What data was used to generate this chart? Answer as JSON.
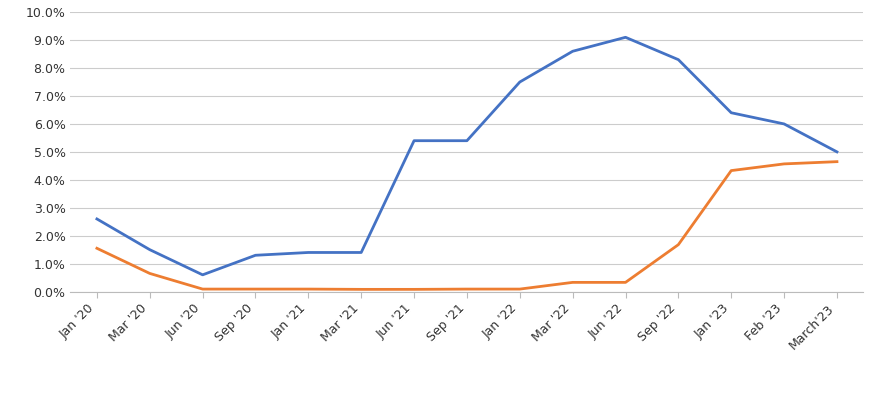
{
  "x_tick_labels": [
    "Jan '20",
    "Mar '20",
    "Jun '20",
    "Sep '20",
    "Jan '21",
    "Mar '21",
    "Jun '21",
    "Sep '21",
    "Jan '22",
    "Mar '22",
    "Jun '22",
    "Sep '22",
    "Jan '23",
    "Feb '23",
    "March'23"
  ],
  "inflation_rate": [
    2.6,
    1.5,
    0.6,
    1.3,
    1.4,
    1.4,
    5.4,
    5.4,
    7.5,
    8.6,
    9.1,
    8.3,
    6.4,
    6.0,
    5.0
  ],
  "fed_interest_rate": [
    1.55,
    0.65,
    0.09,
    0.09,
    0.09,
    0.08,
    0.08,
    0.09,
    0.09,
    0.33,
    0.33,
    1.68,
    4.33,
    4.57,
    4.65
  ],
  "inflation_color": "#4472C4",
  "fed_color": "#ED7D31",
  "ylim_min": 0.0,
  "ylim_max": 10.0,
  "ytick_values": [
    0.0,
    1.0,
    2.0,
    3.0,
    4.0,
    5.0,
    6.0,
    7.0,
    8.0,
    9.0,
    10.0
  ],
  "background_color": "#ffffff",
  "grid_color": "#cccccc",
  "line_width": 2.0,
  "tick_fontsize": 9,
  "legend_fontsize": 9.5,
  "spine_color": "#bbbbbb",
  "tick_label_color": "#333333"
}
